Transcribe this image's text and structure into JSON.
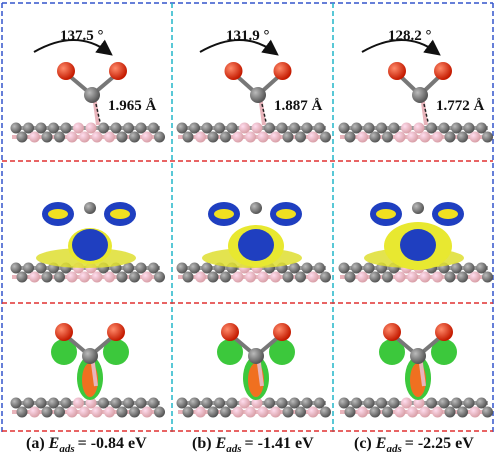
{
  "panels": [
    {
      "angle": "137.5 °",
      "distance": "1.965 Å",
      "caption": {
        "label": "(a)",
        "symbol": "E",
        "subscript": "ads",
        "value": "= -0.84 eV"
      }
    },
    {
      "angle": "131.9 °",
      "distance": "1.887 Å",
      "caption": {
        "label": "(b)",
        "symbol": "E",
        "subscript": "ads",
        "value": "= -1.41 eV"
      }
    },
    {
      "angle": "128.2 °",
      "distance": "1.772 Å",
      "caption": {
        "label": "(c)",
        "symbol": "E",
        "subscript": "ads",
        "value": "= -2.25 eV"
      }
    }
  ]
}
